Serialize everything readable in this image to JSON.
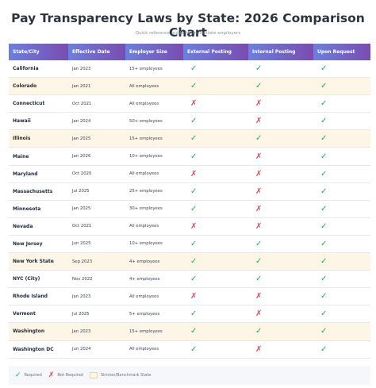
{
  "header": {
    "title": "Pay Transparency Laws by State: 2026 Comparison Chart",
    "subtitle": "Quick reference guide for multi-state employers"
  },
  "table": {
    "columns": [
      "State/City",
      "Effective Date",
      "Employer Size",
      "External Posting",
      "Internal Posting",
      "Upon Request"
    ],
    "rows": [
      {
        "cells": [
          "California",
          "Jan 2023",
          "15+ employees",
          "✓",
          "✓",
          "✓"
        ],
        "highlight": false
      },
      {
        "cells": [
          "Colorado",
          "Jan 2021",
          "All employees",
          "✓",
          "✓",
          "✓"
        ],
        "highlight": true
      },
      {
        "cells": [
          "Connecticut",
          "Oct 2021",
          "All employees",
          "✗",
          "✗",
          "✓"
        ],
        "highlight": false
      },
      {
        "cells": [
          "Hawaii",
          "Jan 2024",
          "50+ employees",
          "✓",
          "✗",
          "✓"
        ],
        "highlight": false
      },
      {
        "cells": [
          "Illinois",
          "Jan 2025",
          "15+ employees",
          "✓",
          "✓",
          "✓"
        ],
        "highlight": true
      },
      {
        "cells": [
          "Maine",
          "Jan 2026",
          "10+ employees",
          "✓",
          "✗",
          "✓"
        ],
        "highlight": false
      },
      {
        "cells": [
          "Maryland",
          "Oct 2020",
          "All employees",
          "✗",
          "✗",
          "✓"
        ],
        "highlight": false
      },
      {
        "cells": [
          "Massachusetts",
          "Jul 2025",
          "25+ employees",
          "✓",
          "✗",
          "✓"
        ],
        "highlight": false
      },
      {
        "cells": [
          "Minnesota",
          "Jan 2025",
          "30+ employees",
          "✓",
          "✗",
          "✓"
        ],
        "highlight": false
      },
      {
        "cells": [
          "Nevada",
          "Oct 2021",
          "All employees",
          "✗",
          "✗",
          "✓"
        ],
        "highlight": false
      },
      {
        "cells": [
          "New Jersey",
          "Jun 2025",
          "10+ employees",
          "✓",
          "✓",
          "✓"
        ],
        "highlight": false
      },
      {
        "cells": [
          "New York State",
          "Sep 2023",
          "4+ employees",
          "✓",
          "✓",
          "✓"
        ],
        "highlight": true
      },
      {
        "cells": [
          "NYC (City)",
          "Nov 2022",
          "4+ employees",
          "✓",
          "✓",
          "✓"
        ],
        "highlight": false
      },
      {
        "cells": [
          "Rhode Island",
          "Jan 2023",
          "All employees",
          "✗",
          "✗",
          "✓"
        ],
        "highlight": false
      },
      {
        "cells": [
          "Vermont",
          "Jul 2025",
          "5+ employees",
          "✓",
          "✗",
          "✓"
        ],
        "highlight": false
      },
      {
        "cells": [
          "Washington",
          "Jan 2023",
          "15+ employees",
          "✓",
          "✓",
          "✓"
        ],
        "highlight": true
      },
      {
        "cells": [
          "Washington DC",
          "Jun 2024",
          "All employees",
          "✓",
          "✗",
          "✓"
        ],
        "highlight": false
      }
    ]
  },
  "legend": {
    "required": {
      "icon": "✓",
      "label": "Required"
    },
    "not_required": {
      "icon": "✗",
      "label": "Not Required"
    },
    "highlight": {
      "label": "Stricter/Benchmark State"
    }
  }
}
